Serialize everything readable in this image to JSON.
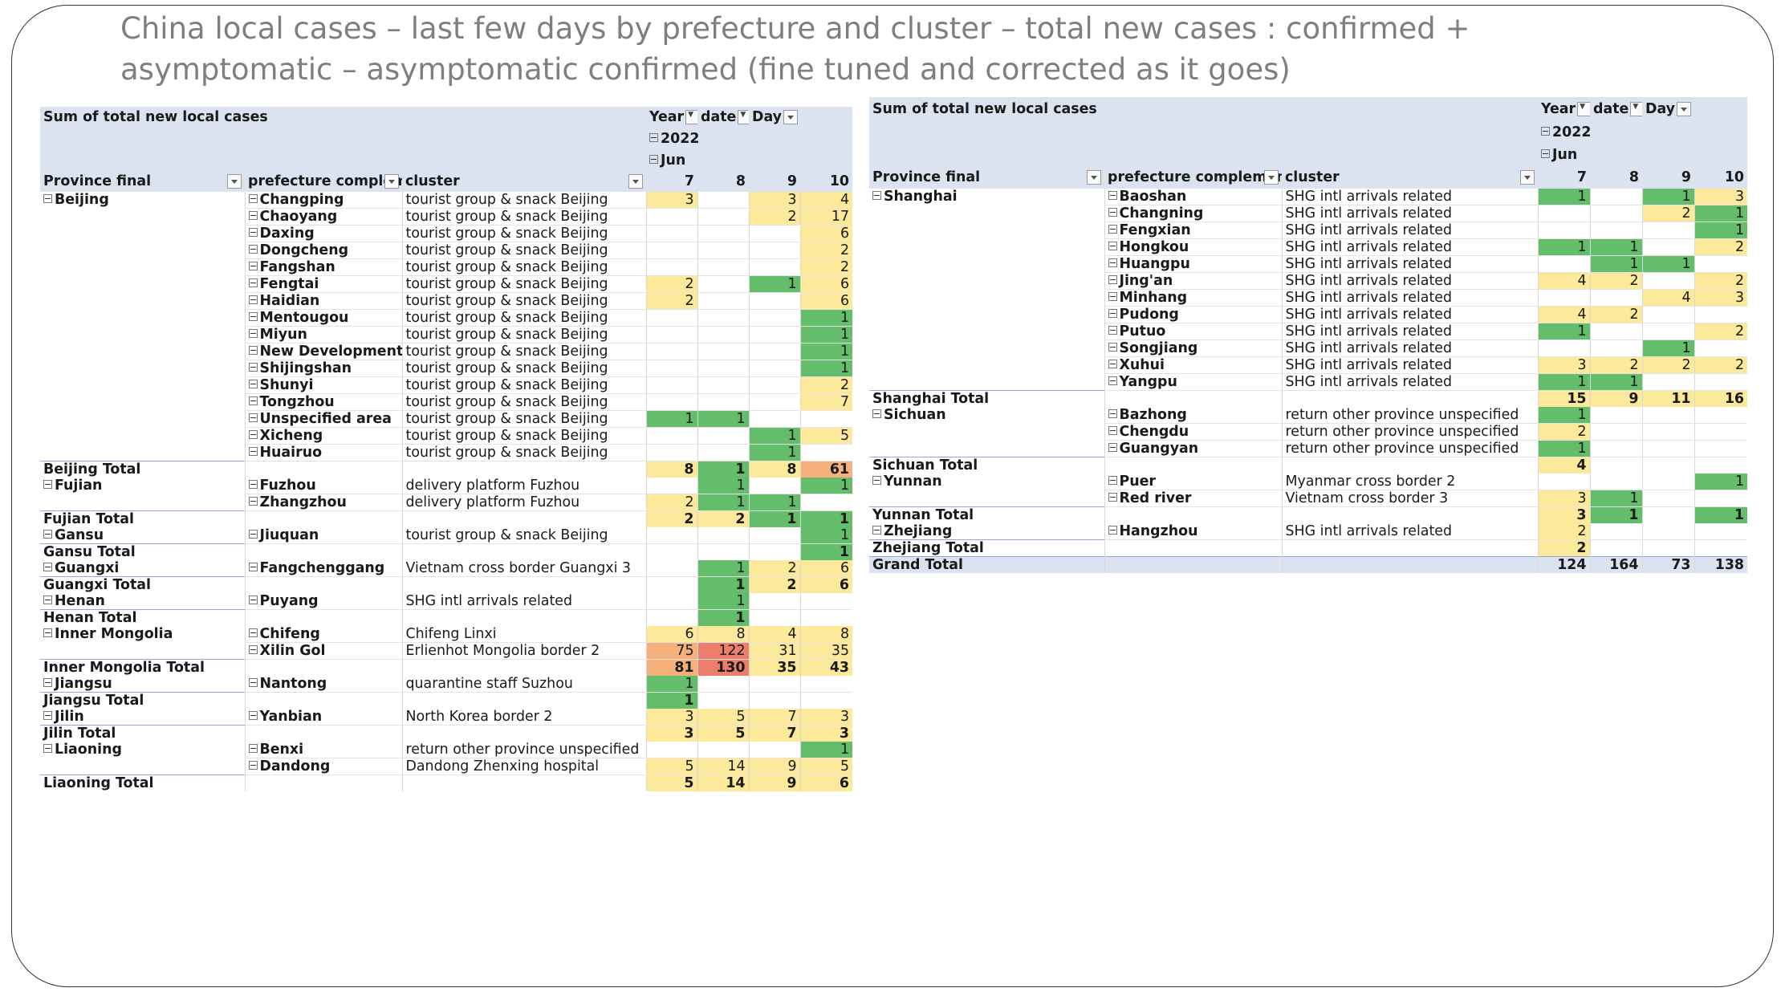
{
  "title": "China local cases – last few days by prefecture and cluster – total new cases : confirmed + asymptomatic – asymptomatic confirmed (fine tuned and corrected as it goes)",
  "legend_colors": {
    "y": "#fde99a",
    "g": "#63bd6a",
    "o": "#f6b07c",
    "r": "#ee7e6b"
  },
  "icons": {
    "filter": "filter-dropdown-icon",
    "expand": "collapse-minus-icon"
  },
  "left": {
    "sum_label": "Sum of total new local cases",
    "col_year": "Year",
    "col_date": "date",
    "col_day": "Day",
    "year": "2022",
    "month": "Jun",
    "h_province": "Province final",
    "h_pref": "prefecture complement",
    "h_cluster": "cluster",
    "days": [
      "7",
      "8",
      "9",
      "10"
    ],
    "rows": [
      {
        "t": "d",
        "p": "Beijing",
        "f": "Changping",
        "c": "tourist group & snack Beijing",
        "v": [
          "3",
          "",
          "3",
          "4"
        ],
        "k": [
          "y",
          "",
          "y",
          "y"
        ]
      },
      {
        "t": "d",
        "p": "",
        "f": "Chaoyang",
        "c": "tourist group & snack Beijing",
        "v": [
          "",
          "",
          "2",
          "17"
        ],
        "k": [
          "",
          "",
          "y",
          "y"
        ]
      },
      {
        "t": "d",
        "p": "",
        "f": "Daxing",
        "c": "tourist group & snack Beijing",
        "v": [
          "",
          "",
          "",
          "6"
        ],
        "k": [
          "",
          "",
          "",
          "y"
        ]
      },
      {
        "t": "d",
        "p": "",
        "f": "Dongcheng",
        "c": "tourist group & snack Beijing",
        "v": [
          "",
          "",
          "",
          "2"
        ],
        "k": [
          "",
          "",
          "",
          "y"
        ]
      },
      {
        "t": "d",
        "p": "",
        "f": "Fangshan",
        "c": "tourist group & snack Beijing",
        "v": [
          "",
          "",
          "",
          "2"
        ],
        "k": [
          "",
          "",
          "",
          "y"
        ]
      },
      {
        "t": "d",
        "p": "",
        "f": "Fengtai",
        "c": "tourist group & snack Beijing",
        "v": [
          "2",
          "",
          "1",
          "6"
        ],
        "k": [
          "y",
          "",
          "g",
          "y"
        ]
      },
      {
        "t": "d",
        "p": "",
        "f": "Haidian",
        "c": "tourist group & snack Beijing",
        "v": [
          "2",
          "",
          "",
          "6"
        ],
        "k": [
          "y",
          "",
          "",
          "y"
        ]
      },
      {
        "t": "d",
        "p": "",
        "f": "Mentougou",
        "c": "tourist group & snack Beijing",
        "v": [
          "",
          "",
          "",
          "1"
        ],
        "k": [
          "",
          "",
          "",
          "g"
        ]
      },
      {
        "t": "d",
        "p": "",
        "f": "Miyun",
        "c": "tourist group & snack Beijing",
        "v": [
          "",
          "",
          "",
          "1"
        ],
        "k": [
          "",
          "",
          "",
          "g"
        ]
      },
      {
        "t": "d",
        "p": "",
        "f": "New Development zone",
        "c": "tourist group & snack Beijing",
        "v": [
          "",
          "",
          "",
          "1"
        ],
        "k": [
          "",
          "",
          "",
          "g"
        ]
      },
      {
        "t": "d",
        "p": "",
        "f": "Shijingshan",
        "c": "tourist group & snack Beijing",
        "v": [
          "",
          "",
          "",
          "1"
        ],
        "k": [
          "",
          "",
          "",
          "g"
        ]
      },
      {
        "t": "d",
        "p": "",
        "f": "Shunyi",
        "c": "tourist group & snack Beijing",
        "v": [
          "",
          "",
          "",
          "2"
        ],
        "k": [
          "",
          "",
          "",
          "y"
        ]
      },
      {
        "t": "d",
        "p": "",
        "f": "Tongzhou",
        "c": "tourist group & snack Beijing",
        "v": [
          "",
          "",
          "",
          "7"
        ],
        "k": [
          "",
          "",
          "",
          "y"
        ]
      },
      {
        "t": "d",
        "p": "",
        "f": "Unspecified area",
        "c": "tourist group & snack Beijing",
        "v": [
          "1",
          "1",
          "",
          ""
        ],
        "k": [
          "g",
          "g",
          "",
          ""
        ]
      },
      {
        "t": "d",
        "p": "",
        "f": "Xicheng",
        "c": "tourist group & snack Beijing",
        "v": [
          "",
          "",
          "1",
          "5"
        ],
        "k": [
          "",
          "",
          "g",
          "y"
        ]
      },
      {
        "t": "d",
        "p": "",
        "f": "Huairuo",
        "c": "tourist group & snack Beijing",
        "v": [
          "",
          "",
          "1",
          ""
        ],
        "k": [
          "",
          "",
          "g",
          ""
        ]
      },
      {
        "t": "t",
        "label": "Beijing Total",
        "v": [
          "8",
          "1",
          "8",
          "61"
        ],
        "k": [
          "y",
          "g",
          "y",
          "o"
        ]
      },
      {
        "t": "d",
        "p": "Fujian",
        "f": "Fuzhou",
        "c": "delivery platform Fuzhou",
        "v": [
          "",
          "1",
          "",
          "1"
        ],
        "k": [
          "",
          "g",
          "",
          "g"
        ]
      },
      {
        "t": "d",
        "p": "",
        "f": "Zhangzhou",
        "c": "delivery platform Fuzhou",
        "v": [
          "2",
          "1",
          "1",
          ""
        ],
        "k": [
          "y",
          "g",
          "g",
          ""
        ]
      },
      {
        "t": "t",
        "label": "Fujian Total",
        "v": [
          "2",
          "2",
          "1",
          "1"
        ],
        "k": [
          "y",
          "y",
          "g",
          "g"
        ]
      },
      {
        "t": "d",
        "p": "Gansu",
        "f": "Jiuquan",
        "c": "tourist group & snack Beijing",
        "v": [
          "",
          "",
          "",
          "1"
        ],
        "k": [
          "",
          "",
          "",
          "g"
        ]
      },
      {
        "t": "t",
        "label": "Gansu Total",
        "v": [
          "",
          "",
          "",
          "1"
        ],
        "k": [
          "",
          "",
          "",
          "g"
        ]
      },
      {
        "t": "d",
        "p": "Guangxi",
        "f": "Fangchenggang",
        "c": "Vietnam cross border Guangxi 3",
        "v": [
          "",
          "1",
          "2",
          "6"
        ],
        "k": [
          "",
          "g",
          "y",
          "y"
        ]
      },
      {
        "t": "t",
        "label": "Guangxi Total",
        "v": [
          "",
          "1",
          "2",
          "6"
        ],
        "k": [
          "",
          "g",
          "y",
          "y"
        ]
      },
      {
        "t": "d",
        "p": "Henan",
        "f": "Puyang",
        "c": "SHG intl arrivals related",
        "v": [
          "",
          "1",
          "",
          ""
        ],
        "k": [
          "",
          "g",
          "",
          ""
        ]
      },
      {
        "t": "t",
        "label": "Henan Total",
        "v": [
          "",
          "1",
          "",
          ""
        ],
        "k": [
          "",
          "g",
          "",
          ""
        ]
      },
      {
        "t": "d",
        "p": "Inner Mongolia",
        "f": "Chifeng",
        "c": "Chifeng Linxi",
        "v": [
          "6",
          "8",
          "4",
          "8"
        ],
        "k": [
          "y",
          "y",
          "y",
          "y"
        ]
      },
      {
        "t": "d",
        "p": "",
        "f": "Xilin Gol",
        "c": "Erlienhot Mongolia border 2",
        "v": [
          "75",
          "122",
          "31",
          "35"
        ],
        "k": [
          "o",
          "r",
          "y",
          "y"
        ]
      },
      {
        "t": "t",
        "label": "Inner Mongolia Total",
        "v": [
          "81",
          "130",
          "35",
          "43"
        ],
        "k": [
          "o",
          "r",
          "y",
          "y"
        ]
      },
      {
        "t": "d",
        "p": "Jiangsu",
        "f": "Nantong",
        "c": "quarantine staff Suzhou",
        "v": [
          "1",
          "",
          "",
          ""
        ],
        "k": [
          "g",
          "",
          "",
          ""
        ]
      },
      {
        "t": "t",
        "label": "Jiangsu Total",
        "v": [
          "1",
          "",
          "",
          ""
        ],
        "k": [
          "g",
          "",
          "",
          ""
        ]
      },
      {
        "t": "d",
        "p": "Jilin",
        "f": "Yanbian",
        "c": "North Korea border 2",
        "v": [
          "3",
          "5",
          "7",
          "3"
        ],
        "k": [
          "y",
          "y",
          "y",
          "y"
        ]
      },
      {
        "t": "t",
        "label": "Jilin Total",
        "v": [
          "3",
          "5",
          "7",
          "3"
        ],
        "k": [
          "y",
          "y",
          "y",
          "y"
        ]
      },
      {
        "t": "d",
        "p": "Liaoning",
        "f": "Benxi",
        "c": "return other province unspecified",
        "v": [
          "",
          "",
          "",
          "1"
        ],
        "k": [
          "",
          "",
          "",
          "g"
        ]
      },
      {
        "t": "d",
        "p": "",
        "f": "Dandong",
        "c": "Dandong Zhenxing hospital",
        "v": [
          "5",
          "14",
          "9",
          "5"
        ],
        "k": [
          "y",
          "y",
          "y",
          "y"
        ]
      },
      {
        "t": "t",
        "label": "Liaoning Total",
        "v": [
          "5",
          "14",
          "9",
          "6"
        ],
        "k": [
          "y",
          "y",
          "y",
          "y"
        ]
      }
    ]
  },
  "right": {
    "sum_label": "Sum of total new local cases",
    "col_year": "Year",
    "col_date": "date",
    "col_day": "Day",
    "year": "2022",
    "month": "Jun",
    "h_province": "Province final",
    "h_pref": "prefecture complement",
    "h_cluster": "cluster",
    "days": [
      "7",
      "8",
      "9",
      "10"
    ],
    "rows": [
      {
        "t": "d",
        "p": "Shanghai",
        "f": "Baoshan",
        "c": "SHG intl arrivals related",
        "v": [
          "1",
          "",
          "1",
          "3"
        ],
        "k": [
          "g",
          "",
          "g",
          "y"
        ]
      },
      {
        "t": "d",
        "p": "",
        "f": "Changning",
        "c": "SHG intl arrivals related",
        "v": [
          "",
          "",
          "2",
          "1"
        ],
        "k": [
          "",
          "",
          "y",
          "g"
        ]
      },
      {
        "t": "d",
        "p": "",
        "f": "Fengxian",
        "c": "SHG intl arrivals related",
        "v": [
          "",
          "",
          "",
          "1"
        ],
        "k": [
          "",
          "",
          "",
          "g"
        ]
      },
      {
        "t": "d",
        "p": "",
        "f": "Hongkou",
        "c": "SHG intl arrivals related",
        "v": [
          "1",
          "1",
          "",
          "2"
        ],
        "k": [
          "g",
          "g",
          "",
          "y"
        ]
      },
      {
        "t": "d",
        "p": "",
        "f": "Huangpu",
        "c": "SHG intl arrivals related",
        "v": [
          "",
          "1",
          "1",
          ""
        ],
        "k": [
          "",
          "g",
          "g",
          ""
        ]
      },
      {
        "t": "d",
        "p": "",
        "f": "Jing'an",
        "c": "SHG intl arrivals related",
        "v": [
          "4",
          "2",
          "",
          "2"
        ],
        "k": [
          "y",
          "y",
          "",
          "y"
        ]
      },
      {
        "t": "d",
        "p": "",
        "f": "Minhang",
        "c": "SHG intl arrivals related",
        "v": [
          "",
          "",
          "4",
          "3"
        ],
        "k": [
          "",
          "",
          "y",
          "y"
        ]
      },
      {
        "t": "d",
        "p": "",
        "f": "Pudong",
        "c": "SHG intl arrivals related",
        "v": [
          "4",
          "2",
          "",
          ""
        ],
        "k": [
          "y",
          "y",
          "",
          ""
        ]
      },
      {
        "t": "d",
        "p": "",
        "f": "Putuo",
        "c": "SHG intl arrivals related",
        "v": [
          "1",
          "",
          "",
          "2"
        ],
        "k": [
          "g",
          "",
          "",
          "y"
        ]
      },
      {
        "t": "d",
        "p": "",
        "f": "Songjiang",
        "c": "SHG intl arrivals related",
        "v": [
          "",
          "",
          "1",
          ""
        ],
        "k": [
          "",
          "",
          "g",
          ""
        ]
      },
      {
        "t": "d",
        "p": "",
        "f": "Xuhui",
        "c": "SHG intl arrivals related",
        "v": [
          "3",
          "2",
          "2",
          "2"
        ],
        "k": [
          "y",
          "y",
          "y",
          "y"
        ]
      },
      {
        "t": "d",
        "p": "",
        "f": "Yangpu",
        "c": "SHG intl arrivals related",
        "v": [
          "1",
          "1",
          "",
          ""
        ],
        "k": [
          "g",
          "g",
          "",
          ""
        ]
      },
      {
        "t": "t",
        "label": "Shanghai Total",
        "v": [
          "15",
          "9",
          "11",
          "16"
        ],
        "k": [
          "y",
          "y",
          "y",
          "y"
        ]
      },
      {
        "t": "d",
        "p": "Sichuan",
        "f": "Bazhong",
        "c": "return other province unspecified",
        "v": [
          "1",
          "",
          "",
          ""
        ],
        "k": [
          "g",
          "",
          "",
          ""
        ]
      },
      {
        "t": "d",
        "p": "",
        "f": "Chengdu",
        "c": "return other province unspecified",
        "v": [
          "2",
          "",
          "",
          ""
        ],
        "k": [
          "y",
          "",
          "",
          ""
        ]
      },
      {
        "t": "d",
        "p": "",
        "f": "Guangyan",
        "c": "return other province unspecified",
        "v": [
          "1",
          "",
          "",
          ""
        ],
        "k": [
          "g",
          "",
          "",
          ""
        ]
      },
      {
        "t": "t",
        "label": "Sichuan Total",
        "v": [
          "4",
          "",
          "",
          ""
        ],
        "k": [
          "y",
          "",
          "",
          ""
        ]
      },
      {
        "t": "d",
        "p": "Yunnan",
        "f": "Puer",
        "c": "Myanmar cross border 2",
        "v": [
          "",
          "",
          "",
          "1"
        ],
        "k": [
          "",
          "",
          "",
          "g"
        ]
      },
      {
        "t": "d",
        "p": "",
        "f": "Red river",
        "c": "Vietnam cross border 3",
        "v": [
          "3",
          "1",
          "",
          ""
        ],
        "k": [
          "y",
          "g",
          "",
          ""
        ]
      },
      {
        "t": "t",
        "label": "Yunnan Total",
        "v": [
          "3",
          "1",
          "",
          "1"
        ],
        "k": [
          "y",
          "g",
          "",
          "g"
        ]
      },
      {
        "t": "d",
        "p": "Zhejiang",
        "f": "Hangzhou",
        "c": "SHG intl arrivals related",
        "v": [
          "2",
          "",
          "",
          ""
        ],
        "k": [
          "y",
          "",
          "",
          ""
        ]
      },
      {
        "t": "t",
        "label": "Zhejiang Total",
        "v": [
          "2",
          "",
          "",
          ""
        ],
        "k": [
          "y",
          "",
          "",
          ""
        ]
      },
      {
        "t": "g",
        "label": "Grand Total",
        "v": [
          "124",
          "164",
          "73",
          "138"
        ],
        "k": [
          "r",
          "r",
          "y",
          "o"
        ]
      }
    ]
  }
}
